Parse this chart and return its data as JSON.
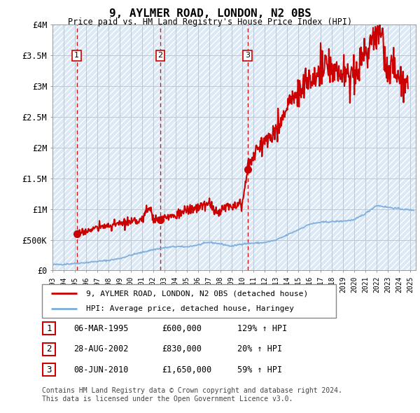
{
  "title": "9, AYLMER ROAD, LONDON, N2 0BS",
  "subtitle": "Price paid vs. HM Land Registry's House Price Index (HPI)",
  "property_label": "9, AYLMER ROAD, LONDON, N2 0BS (detached house)",
  "hpi_label": "HPI: Average price, detached house, Haringey",
  "footer": "Contains HM Land Registry data © Crown copyright and database right 2024.\nThis data is licensed under the Open Government Licence v3.0.",
  "sale_points": [
    {
      "date_num": 1995.17,
      "price": 600000,
      "label": "1"
    },
    {
      "date_num": 2002.65,
      "price": 830000,
      "label": "2"
    },
    {
      "date_num": 2010.44,
      "price": 1650000,
      "label": "3"
    }
  ],
  "sale_table": [
    {
      "num": "1",
      "date": "06-MAR-1995",
      "price": "£600,000",
      "hpi": "129% ↑ HPI"
    },
    {
      "num": "2",
      "date": "28-AUG-2002",
      "price": "£830,000",
      "hpi": "20% ↑ HPI"
    },
    {
      "num": "3",
      "date": "08-JUN-2010",
      "price": "£1,650,000",
      "hpi": "59% ↑ HPI"
    }
  ],
  "property_color": "#cc0000",
  "hpi_color": "#7aaddd",
  "grid_color": "#b8c8d8",
  "bg_color": "#dce8f4",
  "ylim": [
    0,
    4000000
  ],
  "xlim": [
    1993.0,
    2025.5
  ],
  "yticks": [
    0,
    500000,
    1000000,
    1500000,
    2000000,
    2500000,
    3000000,
    3500000,
    4000000
  ],
  "ytick_labels": [
    "£0",
    "£500K",
    "£1M",
    "£1.5M",
    "£2M",
    "£2.5M",
    "£3M",
    "£3.5M",
    "£4M"
  ],
  "xticks": [
    1993,
    1994,
    1995,
    1996,
    1997,
    1998,
    1999,
    2000,
    2001,
    2002,
    2003,
    2004,
    2005,
    2006,
    2007,
    2008,
    2009,
    2010,
    2011,
    2012,
    2013,
    2014,
    2015,
    2016,
    2017,
    2018,
    2019,
    2020,
    2021,
    2022,
    2023,
    2024,
    2025
  ],
  "hpi_anchors_x": [
    1993,
    1994,
    1995,
    1996,
    1997,
    1998,
    1999,
    2000,
    2001,
    2002,
    2003,
    2004,
    2005,
    2006,
    2007,
    2008,
    2009,
    2010,
    2011,
    2012,
    2013,
    2014,
    2015,
    2016,
    2017,
    2018,
    2019,
    2020,
    2021,
    2022,
    2023,
    2024,
    2025
  ],
  "hpi_anchors_y": [
    95000,
    102000,
    115000,
    130000,
    148000,
    165000,
    195000,
    250000,
    295000,
    340000,
    370000,
    390000,
    385000,
    415000,
    460000,
    435000,
    395000,
    435000,
    445000,
    455000,
    495000,
    580000,
    665000,
    755000,
    785000,
    795000,
    805000,
    825000,
    930000,
    1060000,
    1030000,
    1005000,
    985000
  ],
  "prop_anchors_x": [
    1995.17,
    1996,
    1997,
    1998,
    1999,
    2000,
    2001,
    2001.7,
    2002,
    2002.65,
    2003,
    2004,
    2005,
    2006,
    2007,
    2007.5,
    2008,
    2009,
    2010,
    2010.44,
    2011,
    2012,
    2013,
    2014,
    2015,
    2016,
    2017,
    2018,
    2019,
    2020,
    2021,
    2022,
    2022.5,
    2023,
    2023.5,
    2024,
    2024.5
  ],
  "prop_anchors_y": [
    600000,
    640000,
    700000,
    730000,
    760000,
    780000,
    830000,
    1050000,
    850000,
    830000,
    860000,
    900000,
    980000,
    1020000,
    1100000,
    960000,
    980000,
    1080000,
    1100000,
    1650000,
    1900000,
    2100000,
    2300000,
    2650000,
    2900000,
    3100000,
    3250000,
    3300000,
    3150000,
    3200000,
    3550000,
    3800000,
    3750000,
    3200000,
    3350000,
    3050000,
    3100000
  ]
}
